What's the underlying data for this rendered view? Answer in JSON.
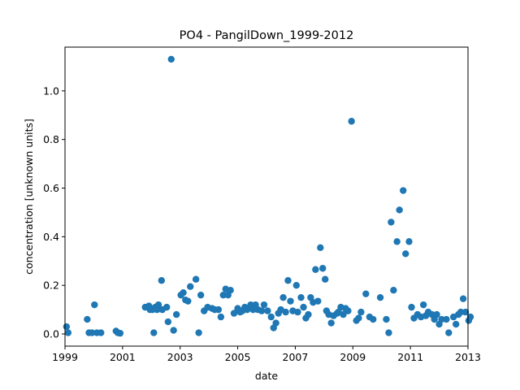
{
  "chart_data": {
    "type": "scatter",
    "title": "PO4 - PangilDown_1999-2012",
    "xlabel": "date",
    "ylabel": "concentration [unknown units]",
    "xlim": [
      "1999-01-01",
      "2013-01-01"
    ],
    "ylim": [
      -0.05,
      1.18
    ],
    "x_ticks": [
      "1999",
      "2001",
      "2003",
      "2005",
      "2007",
      "2009",
      "2011",
      "2013"
    ],
    "y_ticks": [
      "0.0",
      "0.2",
      "0.4",
      "0.6",
      "0.8",
      "1.0"
    ],
    "grid": false,
    "marker_color": "#1f77b4",
    "points": [
      [
        "1999-01-20",
        0.03
      ],
      [
        "1999-02-10",
        0.005
      ],
      [
        "1999-10-10",
        0.06
      ],
      [
        "1999-11-01",
        0.005
      ],
      [
        "1999-12-10",
        0.005
      ],
      [
        "2000-01-10",
        0.12
      ],
      [
        "2000-02-10",
        0.005
      ],
      [
        "2000-04-01",
        0.005
      ],
      [
        "2000-10-10",
        0.012
      ],
      [
        "2000-11-01",
        0.005
      ],
      [
        "2000-12-01",
        0.003
      ],
      [
        "2001-10-15",
        0.11
      ],
      [
        "2001-12-01",
        0.115
      ],
      [
        "2001-12-15",
        0.1
      ],
      [
        "2002-01-15",
        0.1
      ],
      [
        "2002-02-01",
        0.005
      ],
      [
        "2002-02-20",
        0.11
      ],
      [
        "2002-03-15",
        0.1
      ],
      [
        "2002-04-01",
        0.12
      ],
      [
        "2002-05-10",
        0.22
      ],
      [
        "2002-05-20",
        0.1
      ],
      [
        "2002-07-15",
        0.11
      ],
      [
        "2002-08-01",
        0.05
      ],
      [
        "2002-09-10",
        1.13
      ],
      [
        "2002-10-10",
        0.015
      ],
      [
        "2002-11-15",
        0.08
      ],
      [
        "2003-01-10",
        0.16
      ],
      [
        "2003-02-10",
        0.17
      ],
      [
        "2003-03-10",
        0.14
      ],
      [
        "2003-04-10",
        0.135
      ],
      [
        "2003-05-10",
        0.195
      ],
      [
        "2003-07-20",
        0.225
      ],
      [
        "2003-08-25",
        0.005
      ],
      [
        "2003-09-20",
        0.16
      ],
      [
        "2003-11-01",
        0.095
      ],
      [
        "2003-12-15",
        0.11
      ],
      [
        "2004-02-10",
        0.105
      ],
      [
        "2004-03-15",
        0.1
      ],
      [
        "2004-05-01",
        0.1
      ],
      [
        "2004-06-01",
        0.07
      ],
      [
        "2004-07-01",
        0.16
      ],
      [
        "2004-08-01",
        0.185
      ],
      [
        "2004-09-01",
        0.16
      ],
      [
        "2004-10-01",
        0.18
      ],
      [
        "2004-11-15",
        0.085
      ],
      [
        "2005-01-01",
        0.105
      ],
      [
        "2005-02-01",
        0.09
      ],
      [
        "2005-03-01",
        0.095
      ],
      [
        "2005-04-01",
        0.11
      ],
      [
        "2005-05-01",
        0.1
      ],
      [
        "2005-06-15",
        0.12
      ],
      [
        "2005-07-15",
        0.1
      ],
      [
        "2005-08-15",
        0.12
      ],
      [
        "2005-09-15",
        0.1
      ],
      [
        "2005-11-01",
        0.095
      ],
      [
        "2005-12-01",
        0.12
      ],
      [
        "2006-01-15",
        0.095
      ],
      [
        "2006-03-01",
        0.07
      ],
      [
        "2006-04-01",
        0.025
      ],
      [
        "2006-05-01",
        0.045
      ],
      [
        "2006-06-01",
        0.085
      ],
      [
        "2006-07-01",
        0.1
      ],
      [
        "2006-08-01",
        0.15
      ],
      [
        "2006-09-01",
        0.09
      ],
      [
        "2006-10-01",
        0.22
      ],
      [
        "2006-11-01",
        0.135
      ],
      [
        "2006-12-01",
        0.095
      ],
      [
        "2007-01-15",
        0.2
      ],
      [
        "2007-02-01",
        0.09
      ],
      [
        "2007-03-15",
        0.15
      ],
      [
        "2007-04-15",
        0.11
      ],
      [
        "2007-05-15",
        0.065
      ],
      [
        "2007-06-15",
        0.08
      ],
      [
        "2007-07-15",
        0.15
      ],
      [
        "2007-08-15",
        0.13
      ],
      [
        "2007-09-15",
        0.265
      ],
      [
        "2007-10-15",
        0.135
      ],
      [
        "2007-11-15",
        0.355
      ],
      [
        "2007-12-15",
        0.27
      ],
      [
        "2008-01-15",
        0.225
      ],
      [
        "2008-02-01",
        0.095
      ],
      [
        "2008-03-01",
        0.08
      ],
      [
        "2008-04-01",
        0.045
      ],
      [
        "2008-05-01",
        0.075
      ],
      [
        "2008-06-15",
        0.085
      ],
      [
        "2008-07-01",
        0.09
      ],
      [
        "2008-08-01",
        0.11
      ],
      [
        "2008-09-01",
        0.08
      ],
      [
        "2008-10-01",
        0.105
      ],
      [
        "2008-11-01",
        0.095
      ],
      [
        "2008-12-15",
        0.875
      ],
      [
        "2009-02-15",
        0.055
      ],
      [
        "2009-03-15",
        0.065
      ],
      [
        "2009-04-15",
        0.09
      ],
      [
        "2009-06-15",
        0.165
      ],
      [
        "2009-08-01",
        0.07
      ],
      [
        "2009-09-15",
        0.06
      ],
      [
        "2009-12-15",
        0.15
      ],
      [
        "2010-03-01",
        0.06
      ],
      [
        "2010-04-01",
        0.005
      ],
      [
        "2010-05-01",
        0.46
      ],
      [
        "2010-06-01",
        0.18
      ],
      [
        "2010-07-15",
        0.38
      ],
      [
        "2010-08-15",
        0.51
      ],
      [
        "2010-10-01",
        0.59
      ],
      [
        "2010-11-01",
        0.33
      ],
      [
        "2010-12-15",
        0.38
      ],
      [
        "2011-01-15",
        0.11
      ],
      [
        "2011-02-15",
        0.065
      ],
      [
        "2011-04-01",
        0.08
      ],
      [
        "2011-05-15",
        0.07
      ],
      [
        "2011-06-15",
        0.12
      ],
      [
        "2011-07-15",
        0.075
      ],
      [
        "2011-08-15",
        0.09
      ],
      [
        "2011-10-01",
        0.08
      ],
      [
        "2011-11-01",
        0.06
      ],
      [
        "2011-12-01",
        0.08
      ],
      [
        "2012-01-01",
        0.04
      ],
      [
        "2012-02-01",
        0.06
      ],
      [
        "2012-04-01",
        0.06
      ],
      [
        "2012-05-01",
        0.005
      ],
      [
        "2012-07-01",
        0.07
      ],
      [
        "2012-08-01",
        0.04
      ],
      [
        "2012-09-01",
        0.08
      ],
      [
        "2012-10-01",
        0.09
      ],
      [
        "2012-11-01",
        0.145
      ],
      [
        "2012-12-01",
        0.09
      ],
      [
        "2013-01-10",
        0.055
      ],
      [
        "2013-02-01",
        0.07
      ]
    ]
  }
}
